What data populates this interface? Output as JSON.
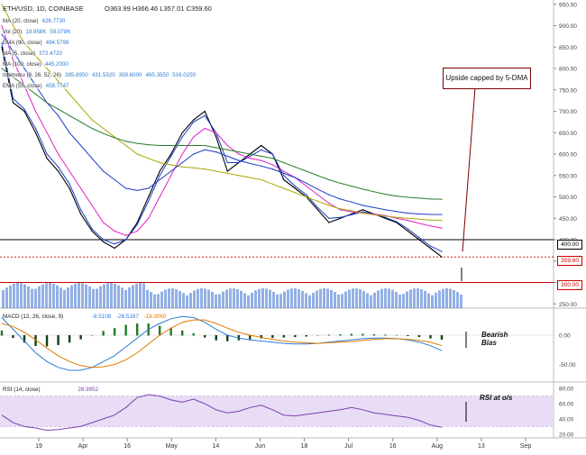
{
  "header": {
    "symbol": "ETH/USD, 1D, COINBASE",
    "ohlc": "O363.99  H366.46  L357.01  C359.60"
  },
  "indicators": [
    {
      "label": "MA (20, close)",
      "value": "426.7730"
    },
    {
      "label": "Vol (20)",
      "value": "19.958K",
      "value2": "59.078K"
    },
    {
      "label": "EMA (90, close)",
      "value": "494.5799"
    },
    {
      "label": "MA (5, close)",
      "value": "372.4720"
    },
    {
      "label": "MA (100, close)",
      "value": "445.2000"
    },
    {
      "label": "Ichimoku (9, 26, 52, 26)",
      "values": [
        "385.8950",
        "431.5320",
        "359.6000",
        "465.3550",
        "516.0250"
      ]
    },
    {
      "label": "EMA (55, close)",
      "value": "458.7747"
    }
  ],
  "price_tags": {
    "current": "359.60",
    "level_400": "400.00",
    "level_300": "300.00"
  },
  "callout": "Upside capped by 5-DMA",
  "annotations": {
    "macd": "Bearish\nBias",
    "rsi": "RSI at o/s"
  },
  "macd_label": "MACD (12, 26, close, 9)",
  "macd_values": [
    "-8.5108",
    "-26.5167",
    "-18.0060"
  ],
  "rsi_label": "RSI (14, close)",
  "rsi_value": "28.9952",
  "chart_data": {
    "type": "line",
    "title": "ETH/USD, 1D, COINBASE",
    "x_tick_labels": [
      "19",
      "Apr",
      "16",
      "May",
      "14",
      "Jun",
      "18",
      "Jul",
      "16",
      "Aug",
      "13",
      "Sep"
    ],
    "main": {
      "y_ticks": [
        250,
        300,
        350,
        400,
        450,
        500,
        550,
        600,
        650,
        700,
        750,
        800,
        850,
        900,
        950
      ],
      "ylim": [
        240,
        960
      ],
      "hlines": [
        400,
        300
      ],
      "series": [
        {
          "name": "close",
          "values": [
            850,
            720,
            700,
            650,
            590,
            560,
            520,
            460,
            420,
            395,
            380,
            400,
            440,
            500,
            560,
            600,
            650,
            680,
            700,
            640,
            560,
            580,
            600,
            620,
            600,
            540,
            520,
            500,
            470,
            440,
            450,
            460,
            470,
            460,
            450,
            440,
            420,
            400,
            380,
            359.6
          ]
        },
        {
          "name": "MA (5, close)",
          "values": [
            860,
            730,
            705,
            660,
            600,
            570,
            530,
            470,
            425,
            400,
            390,
            400,
            435,
            490,
            550,
            595,
            640,
            675,
            690,
            650,
            580,
            580,
            595,
            610,
            600,
            550,
            525,
            505,
            475,
            450,
            452,
            458,
            465,
            460,
            452,
            442,
            425,
            405,
            385,
            372.5
          ]
        },
        {
          "name": "MA (20, close)",
          "values": [
            900,
            820,
            760,
            700,
            650,
            600,
            560,
            520,
            480,
            440,
            420,
            410,
            420,
            450,
            500,
            550,
            600,
            640,
            660,
            650,
            620,
            600,
            590,
            585,
            575,
            560,
            545,
            525,
            505,
            485,
            470,
            465,
            462,
            460,
            456,
            450,
            445,
            438,
            432,
            426.8
          ]
        },
        {
          "name": "MA (100, close)",
          "values": [
            950,
            900,
            860,
            830,
            800,
            770,
            740,
            710,
            680,
            660,
            640,
            620,
            600,
            590,
            580,
            575,
            570,
            568,
            565,
            560,
            555,
            550,
            545,
            540,
            530,
            520,
            510,
            500,
            490,
            480,
            472,
            468,
            462,
            458,
            455,
            452,
            450,
            448,
            446,
            445.2
          ]
        },
        {
          "name": "EMA (55, close)",
          "values": [
            880,
            840,
            800,
            760,
            720,
            690,
            650,
            620,
            590,
            560,
            540,
            520,
            515,
            520,
            540,
            560,
            580,
            600,
            610,
            605,
            595,
            585,
            578,
            572,
            565,
            555,
            545,
            532,
            518,
            505,
            495,
            488,
            480,
            475,
            470,
            466,
            462,
            460,
            459,
            458.8
          ]
        },
        {
          "name": "EMA (90, close)",
          "values": [
            800,
            780,
            760,
            740,
            720,
            705,
            690,
            675,
            660,
            648,
            638,
            630,
            625,
            622,
            620,
            620,
            620,
            620,
            620,
            615,
            610,
            605,
            600,
            595,
            590,
            580,
            570,
            560,
            550,
            540,
            532,
            525,
            518,
            512,
            506,
            502,
            499,
            497,
            495,
            494.6
          ]
        }
      ]
    },
    "macd": {
      "ylim": [
        -80,
        40
      ],
      "y_ticks": [
        -50,
        0
      ],
      "macd": [
        30,
        10,
        -10,
        -30,
        -45,
        -55,
        -60,
        -60,
        -55,
        -45,
        -35,
        -20,
        -5,
        10,
        20,
        28,
        32,
        30,
        22,
        10,
        0,
        -5,
        -8,
        -10,
        -12,
        -14,
        -15,
        -15,
        -14,
        -12,
        -10,
        -8,
        -6,
        -5,
        -5,
        -6,
        -8,
        -12,
        -18,
        -26.5
      ],
      "signal": [
        20,
        15,
        5,
        -8,
        -22,
        -35,
        -45,
        -52,
        -55,
        -54,
        -50,
        -42,
        -30,
        -15,
        0,
        12,
        22,
        26,
        26,
        20,
        12,
        5,
        0,
        -4,
        -7,
        -10,
        -12,
        -13,
        -14,
        -13,
        -12,
        -11,
        -9,
        -7,
        -6,
        -6,
        -7,
        -9,
        -12,
        -18.0
      ]
    },
    "rsi": {
      "ylim": [
        15,
        85
      ],
      "y_ticks": [
        20,
        40,
        60,
        80
      ],
      "overbought": 70,
      "oversold": 30,
      "values": [
        45,
        35,
        30,
        28,
        25,
        26,
        28,
        30,
        35,
        40,
        45,
        55,
        68,
        72,
        70,
        65,
        62,
        66,
        60,
        52,
        48,
        50,
        55,
        58,
        52,
        45,
        44,
        46,
        48,
        50,
        52,
        55,
        52,
        48,
        46,
        44,
        42,
        38,
        32,
        28.9952
      ]
    }
  }
}
